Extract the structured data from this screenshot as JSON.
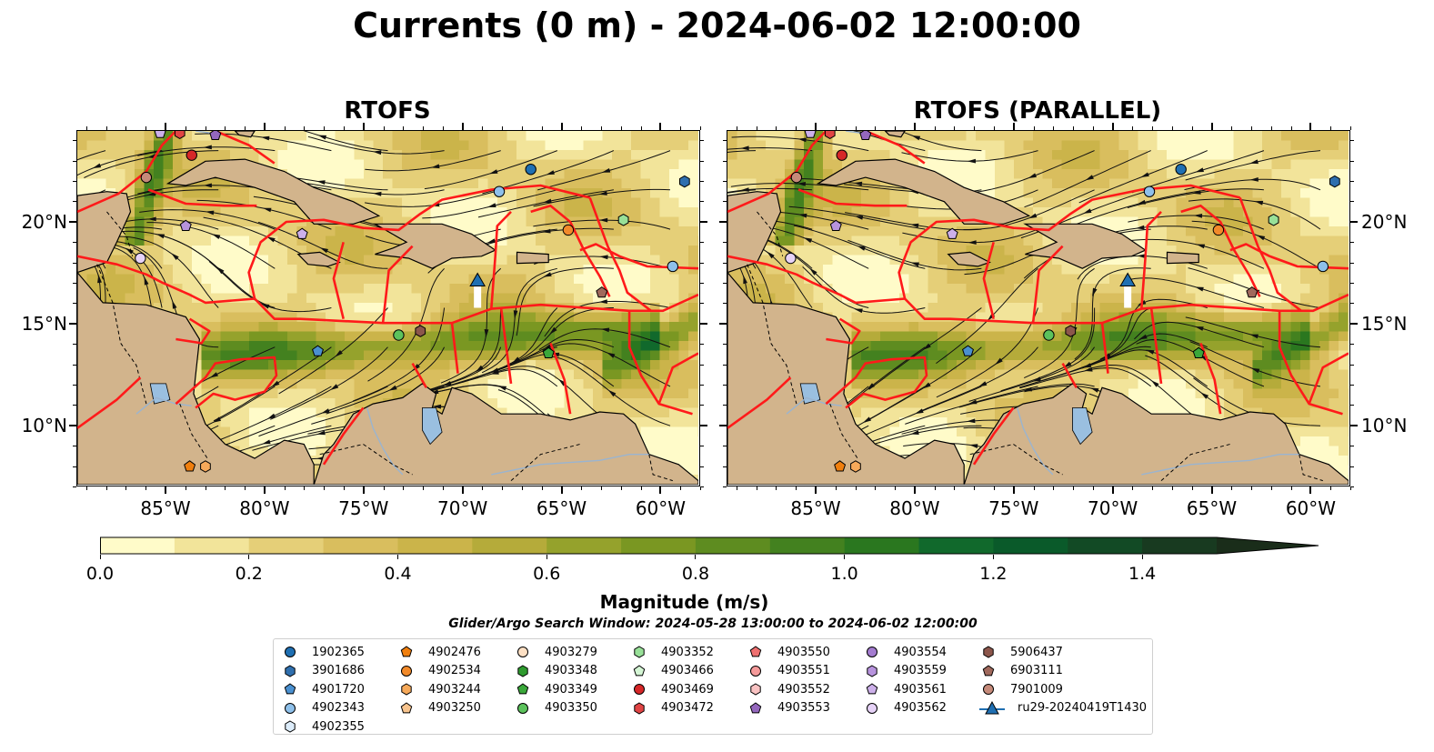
{
  "title": "Currents (0 m) - 2024-06-02 12:00:00",
  "panels": [
    {
      "title": "RTOFS"
    },
    {
      "title": "RTOFS (PARALLEL)"
    }
  ],
  "lat_labels": [
    "20°N",
    "15°N",
    "10°N"
  ],
  "lon_labels": [
    "85°W",
    "80°W",
    "75°W",
    "70°W",
    "65°W",
    "60°W"
  ],
  "colorbar": {
    "label": "Magnitude (m/s)",
    "ticks": [
      "0.0",
      "0.2",
      "0.4",
      "0.6",
      "0.8",
      "1.0",
      "1.2",
      "1.4"
    ],
    "range": [
      0.0,
      1.5
    ],
    "colors": [
      "#fffbc9",
      "#f2e49a",
      "#e5cf78",
      "#d9be5e",
      "#cbb44a",
      "#b5ab3a",
      "#95a22c",
      "#7a9722",
      "#5e8c20",
      "#43811f",
      "#2a771f",
      "#11692c",
      "#0a5a2a",
      "#124a25",
      "#183a20",
      "#1a2d1a"
    ],
    "extend": "max"
  },
  "search_window": "Glider/Argo Search Window: 2024-05-28 13:00:00 to 2024-06-02 12:00:00",
  "legend": [
    [
      {
        "label": "1902365",
        "marker": "circle",
        "color": "#1f6fb2"
      },
      {
        "label": "3901686",
        "marker": "hexagon",
        "color": "#2f6fae"
      },
      {
        "label": "4901720",
        "marker": "pentagon",
        "color": "#4a90d0"
      },
      {
        "label": "4902343",
        "marker": "circle",
        "color": "#8ec0ea"
      },
      {
        "label": "4902355",
        "marker": "hexagon",
        "color": "#dcecfa"
      }
    ],
    [
      {
        "label": "4902476",
        "marker": "pentagon",
        "color": "#f07f0e"
      },
      {
        "label": "4902534",
        "marker": "circle",
        "color": "#f28a2a"
      },
      {
        "label": "4903244",
        "marker": "hexagon",
        "color": "#f6a95a"
      },
      {
        "label": "4903250",
        "marker": "pentagon",
        "color": "#f8c48e"
      }
    ],
    [
      {
        "label": "4903279",
        "marker": "circle",
        "color": "#fde0c4"
      },
      {
        "label": "4903348",
        "marker": "hexagon",
        "color": "#2e9a2e"
      },
      {
        "label": "4903349",
        "marker": "pentagon",
        "color": "#3aa83a"
      },
      {
        "label": "4903350",
        "marker": "circle",
        "color": "#5cc25c"
      }
    ],
    [
      {
        "label": "4903352",
        "marker": "hexagon",
        "color": "#98e098"
      },
      {
        "label": "4903466",
        "marker": "pentagon",
        "color": "#d4f5d4"
      },
      {
        "label": "4903469",
        "marker": "circle",
        "color": "#d62728"
      },
      {
        "label": "4903472",
        "marker": "hexagon",
        "color": "#e04444"
      }
    ],
    [
      {
        "label": "4903550",
        "marker": "pentagon",
        "color": "#ef7070"
      },
      {
        "label": "4903551",
        "marker": "circle",
        "color": "#f59a9a"
      },
      {
        "label": "4903552",
        "marker": "hexagon",
        "color": "#f9c2c2"
      },
      {
        "label": "4903553",
        "marker": "pentagon",
        "color": "#9467bd"
      }
    ],
    [
      {
        "label": "4903554",
        "marker": "circle",
        "color": "#a47cd0"
      },
      {
        "label": "4903559",
        "marker": "hexagon",
        "color": "#b793dd"
      },
      {
        "label": "4903561",
        "marker": "pentagon",
        "color": "#cdb0ea"
      },
      {
        "label": "4903562",
        "marker": "circle",
        "color": "#e6d2f7"
      }
    ],
    [
      {
        "label": "5906437",
        "marker": "hexagon",
        "color": "#8c564b"
      },
      {
        "label": "6903111",
        "marker": "pentagon",
        "color": "#a0695c"
      },
      {
        "label": "7901009",
        "marker": "circle",
        "color": "#c58a7a"
      },
      {
        "label": "ru29-20240419T1430",
        "marker": "glider",
        "color": "#1f6fb2"
      }
    ]
  ],
  "map_extent": {
    "lon": [
      -89.5,
      -58.0
    ],
    "lat": [
      7.0,
      24.5
    ]
  },
  "platforms": [
    {
      "lon": -85.3,
      "lat": 24.4,
      "marker": "pentagon",
      "color": "#cdb0ea"
    },
    {
      "lon": -84.3,
      "lat": 24.4,
      "marker": "hexagon",
      "color": "#e04444"
    },
    {
      "lon": -82.5,
      "lat": 24.3,
      "marker": "pentagon",
      "color": "#9467bd"
    },
    {
      "lon": -83.7,
      "lat": 23.3,
      "marker": "circle",
      "color": "#d62728"
    },
    {
      "lon": -86.0,
      "lat": 22.2,
      "marker": "circle",
      "color": "#c58a7a"
    },
    {
      "lon": -84.0,
      "lat": 19.8,
      "marker": "pentagon",
      "color": "#b793dd"
    },
    {
      "lon": -86.3,
      "lat": 18.2,
      "marker": "circle",
      "color": "#e6d2f7"
    },
    {
      "lon": -78.1,
      "lat": 19.4,
      "marker": "pentagon",
      "color": "#cdb0ea"
    },
    {
      "lon": -66.5,
      "lat": 22.6,
      "marker": "circle",
      "color": "#1f6fb2"
    },
    {
      "lon": -68.1,
      "lat": 21.5,
      "marker": "circle",
      "color": "#8ec0ea"
    },
    {
      "lon": -58.7,
      "lat": 22.0,
      "marker": "hexagon",
      "color": "#2f6fae"
    },
    {
      "lon": -64.6,
      "lat": 19.6,
      "marker": "circle",
      "color": "#f28a2a"
    },
    {
      "lon": -61.8,
      "lat": 20.1,
      "marker": "hexagon",
      "color": "#98e098"
    },
    {
      "lon": -59.3,
      "lat": 17.8,
      "marker": "circle",
      "color": "#8ec0ea"
    },
    {
      "lon": -62.9,
      "lat": 16.5,
      "marker": "pentagon",
      "color": "#a0695c"
    },
    {
      "lon": -72.1,
      "lat": 14.6,
      "marker": "hexagon",
      "color": "#8c564b"
    },
    {
      "lon": -73.2,
      "lat": 14.4,
      "marker": "circle",
      "color": "#5cc25c"
    },
    {
      "lon": -77.3,
      "lat": 13.6,
      "marker": "pentagon",
      "color": "#4a90d0"
    },
    {
      "lon": -65.6,
      "lat": 13.5,
      "marker": "pentagon",
      "color": "#3aa83a"
    },
    {
      "lon": -83.8,
      "lat": 7.9,
      "marker": "pentagon",
      "color": "#f07f0e"
    },
    {
      "lon": -83.0,
      "lat": 7.9,
      "marker": "hexagon",
      "color": "#f6a95a"
    }
  ],
  "glider_position": {
    "lon": -69.2,
    "lat": 17.1
  }
}
